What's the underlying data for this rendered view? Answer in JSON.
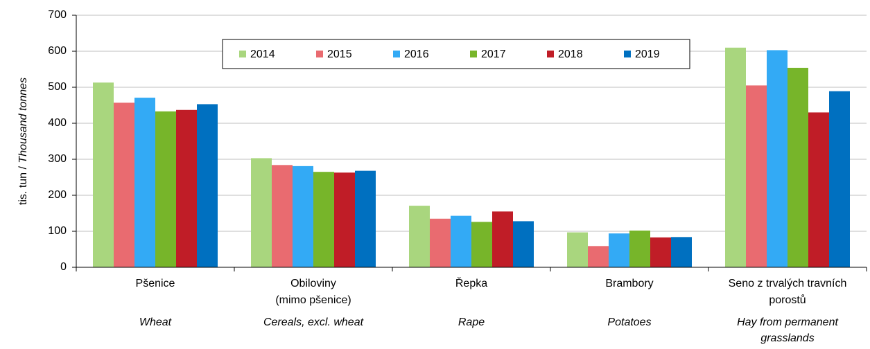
{
  "chart_data": {
    "type": "bar",
    "ylabel": "tis. tun /",
    "ylabel_en": "Thousand tonnes",
    "categories": [
      [
        "Pšenice"
      ],
      [
        "Obiloviny",
        "(mimo pšenice)"
      ],
      [
        "Řepka"
      ],
      [
        "Brambory"
      ],
      [
        "Seno z trvalých travních",
        "porostů"
      ]
    ],
    "categories_en": [
      [
        "Wheat"
      ],
      [
        "Cereals, excl. wheat"
      ],
      [
        "Rape"
      ],
      [
        "Potatoes"
      ],
      [
        "Hay from permanent",
        "grasslands"
      ]
    ],
    "series": [
      {
        "name": "2014",
        "color": "#a9d67e",
        "values": [
          513,
          303,
          171,
          97,
          610
        ]
      },
      {
        "name": "2015",
        "color": "#e96b70",
        "values": [
          457,
          284,
          135,
          59,
          505
        ]
      },
      {
        "name": "2016",
        "color": "#33aaf5",
        "values": [
          471,
          281,
          143,
          94,
          603
        ]
      },
      {
        "name": "2017",
        "color": "#77b52a",
        "values": [
          433,
          265,
          126,
          102,
          554
        ]
      },
      {
        "name": "2018",
        "color": "#c01d27",
        "values": [
          437,
          263,
          155,
          83,
          430
        ]
      },
      {
        "name": "2019",
        "color": "#0070c0",
        "values": [
          453,
          268,
          128,
          84,
          489
        ]
      }
    ],
    "ylim": [
      0,
      700
    ],
    "yticks": [
      0,
      100,
      200,
      300,
      400,
      500,
      600,
      700
    ],
    "grid": true,
    "legend": "top"
  }
}
